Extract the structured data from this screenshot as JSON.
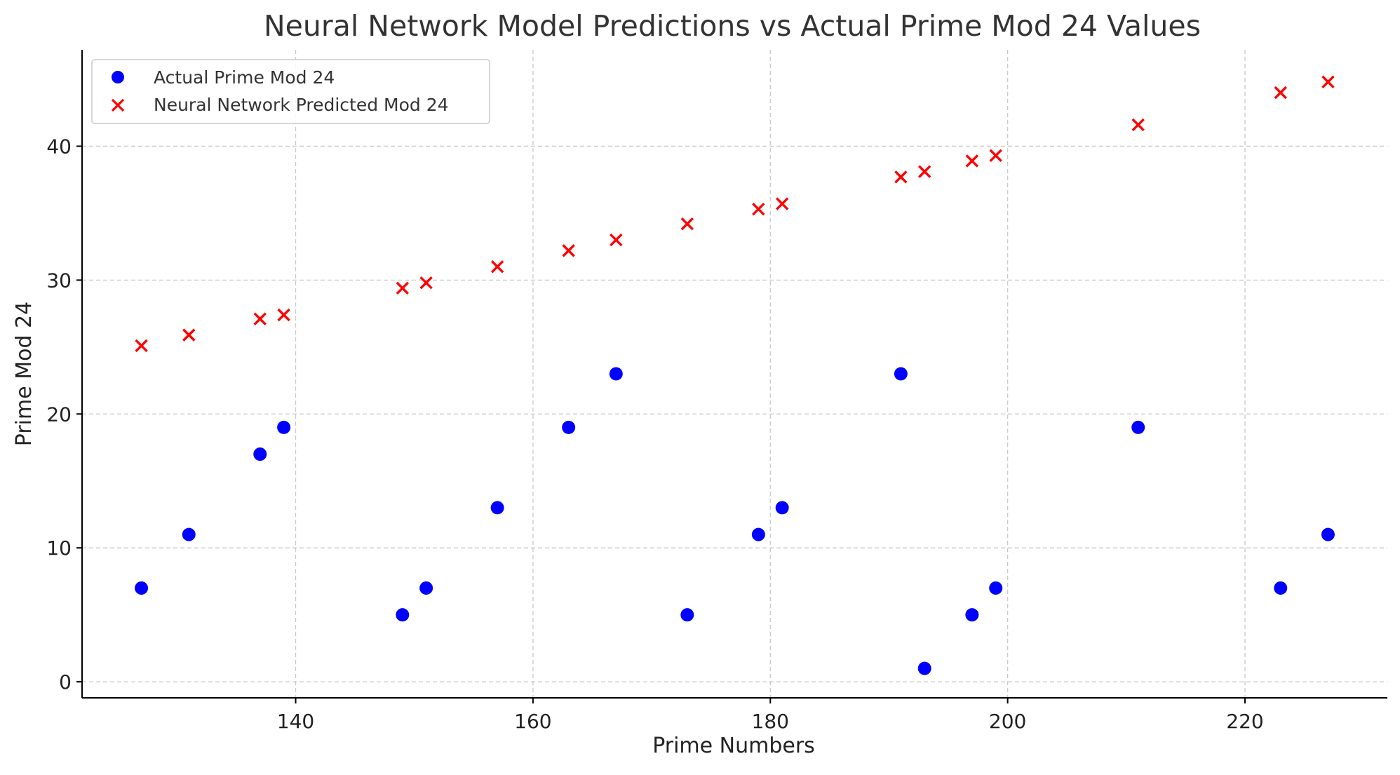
{
  "chart_data": {
    "type": "scatter",
    "title": "Neural Network Model Predictions vs Actual Prime Mod 24 Values",
    "xlabel": "Prime Numbers",
    "ylabel": "Prime Mod 24",
    "xlim": [
      122,
      232
    ],
    "ylim": [
      -1.2,
      47.2
    ],
    "xticks": [
      140,
      160,
      180,
      200,
      220
    ],
    "yticks": [
      0,
      10,
      20,
      30,
      40
    ],
    "grid": true,
    "legend_position": "top-left",
    "series": [
      {
        "name": "Actual Prime Mod 24",
        "marker": "circle",
        "color": "#0000ff",
        "points": [
          {
            "x": 127,
            "y": 7
          },
          {
            "x": 131,
            "y": 11
          },
          {
            "x": 137,
            "y": 17
          },
          {
            "x": 139,
            "y": 19
          },
          {
            "x": 149,
            "y": 5
          },
          {
            "x": 151,
            "y": 7
          },
          {
            "x": 157,
            "y": 13
          },
          {
            "x": 163,
            "y": 19
          },
          {
            "x": 167,
            "y": 23
          },
          {
            "x": 173,
            "y": 5
          },
          {
            "x": 179,
            "y": 11
          },
          {
            "x": 181,
            "y": 13
          },
          {
            "x": 191,
            "y": 23
          },
          {
            "x": 193,
            "y": 1
          },
          {
            "x": 197,
            "y": 5
          },
          {
            "x": 199,
            "y": 7
          },
          {
            "x": 211,
            "y": 19
          },
          {
            "x": 223,
            "y": 7
          },
          {
            "x": 227,
            "y": 11
          }
        ]
      },
      {
        "name": "Neural Network Predicted Mod 24",
        "marker": "x",
        "color": "#ff0000",
        "points": [
          {
            "x": 127,
            "y": 25.1
          },
          {
            "x": 131,
            "y": 25.9
          },
          {
            "x": 137,
            "y": 27.1
          },
          {
            "x": 139,
            "y": 27.4
          },
          {
            "x": 149,
            "y": 29.4
          },
          {
            "x": 151,
            "y": 29.8
          },
          {
            "x": 157,
            "y": 31.0
          },
          {
            "x": 163,
            "y": 32.2
          },
          {
            "x": 167,
            "y": 33.0
          },
          {
            "x": 173,
            "y": 34.2
          },
          {
            "x": 179,
            "y": 35.3
          },
          {
            "x": 181,
            "y": 35.7
          },
          {
            "x": 191,
            "y": 37.7
          },
          {
            "x": 193,
            "y": 38.1
          },
          {
            "x": 197,
            "y": 38.9
          },
          {
            "x": 199,
            "y": 39.3
          },
          {
            "x": 211,
            "y": 41.6
          },
          {
            "x": 223,
            "y": 44.0
          },
          {
            "x": 227,
            "y": 44.8
          }
        ]
      }
    ]
  }
}
